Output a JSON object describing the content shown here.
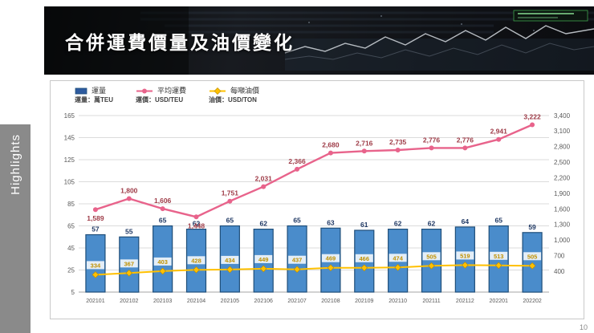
{
  "page": {
    "page_number": "10"
  },
  "header": {
    "title": "合併運費價量及油價變化"
  },
  "sidebar": {
    "label": "Highlights"
  },
  "legend": {
    "items": [
      {
        "label": "運量",
        "sub": "運量：萬TEU"
      },
      {
        "label": "平均運費",
        "sub": "運價：USD/TEU"
      },
      {
        "label": "每噸油價",
        "sub": "油價：USD/TON"
      }
    ]
  },
  "colors": {
    "bar": "#4A8CCB",
    "bar_stroke": "#1F4E79",
    "bar_label": "#1F3864",
    "freight_line": "#E8638B",
    "freight_label": "#9E3B47",
    "oil_line": "#FFC000",
    "oil_label": "#BF9000",
    "grid": "#DBDBDB",
    "axis_text": "#595959",
    "axis_line": "#A6A6A6"
  },
  "chart_data": {
    "type": "combo",
    "title": "合併運費價量及油價變化",
    "categories": [
      "202101",
      "202102",
      "202103",
      "202104",
      "202105",
      "202106",
      "202107",
      "202108",
      "202109",
      "202110",
      "202111",
      "202112",
      "202201",
      "202202"
    ],
    "series": [
      {
        "name": "運量",
        "type": "bar",
        "axis": "left",
        "unit": "萬TEU",
        "values": [
          57,
          55,
          65,
          62,
          65,
          62,
          65,
          63,
          61,
          62,
          62,
          64,
          65,
          59
        ]
      },
      {
        "name": "平均運費",
        "type": "line",
        "axis": "right",
        "unit": "USD/TEU",
        "values": [
          1589,
          1800,
          1606,
          1448,
          1751,
          2031,
          2366,
          2680,
          2716,
          2735,
          2776,
          2776,
          2941,
          3222
        ]
      },
      {
        "name": "每噸油價",
        "type": "line",
        "axis": "right",
        "unit": "USD/TON",
        "values": [
          334,
          367,
          403,
          428,
          434,
          449,
          437,
          469,
          466,
          474,
          505,
          519,
          513,
          505
        ]
      }
    ],
    "left_axis": {
      "min": 5,
      "max": 165,
      "ticks": [
        5,
        25,
        45,
        65,
        85,
        105,
        125,
        145,
        165
      ]
    },
    "right_axis": {
      "min": 0,
      "max": 3400,
      "ticks": [
        400,
        700,
        1000,
        1300,
        1600,
        1900,
        2200,
        2500,
        2800,
        3100,
        3400
      ]
    },
    "grid": true,
    "legend_position": "top-left"
  }
}
